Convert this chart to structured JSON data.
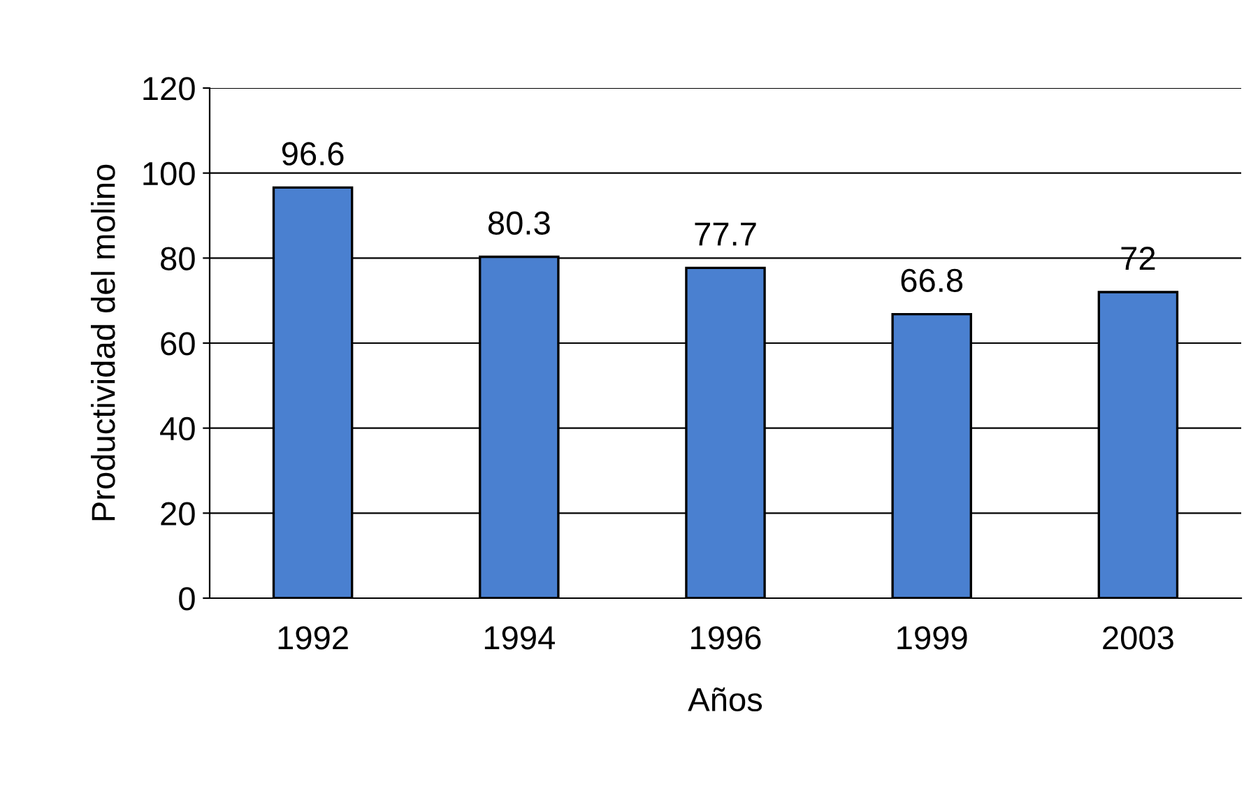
{
  "chart_data": {
    "type": "bar",
    "xlabel": "Años",
    "ylabel": "Productividad del molino",
    "categories": [
      "1992",
      "1994",
      "1996",
      "1999",
      "2003"
    ],
    "values": [
      96.6,
      80.3,
      77.7,
      66.8,
      72
    ],
    "color": "#4a80d0",
    "ylim": [
      0,
      120
    ],
    "yticks": [
      0,
      20,
      40,
      60,
      80,
      100,
      120
    ],
    "grid": "y",
    "data_labels": true
  }
}
